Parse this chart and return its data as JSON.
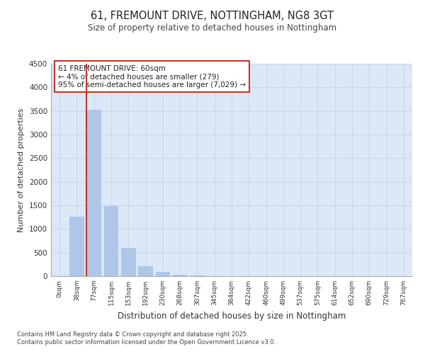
{
  "title": "61, FREMOUNT DRIVE, NOTTINGHAM, NG8 3GT",
  "subtitle": "Size of property relative to detached houses in Nottingham",
  "xlabel": "Distribution of detached houses by size in Nottingham",
  "ylabel": "Number of detached properties",
  "annotation_title": "61 FREMOUNT DRIVE: 60sqm",
  "annotation_line1": "← 4% of detached houses are smaller (279)",
  "annotation_line2": "95% of semi-detached houses are larger (7,029) →",
  "footnote1": "Contains HM Land Registry data © Crown copyright and database right 2025.",
  "footnote2": "Contains public sector information licensed under the Open Government Licence v3.0.",
  "property_size_sqm": 60,
  "categories": [
    "0sqm",
    "38sqm",
    "77sqm",
    "115sqm",
    "153sqm",
    "192sqm",
    "230sqm",
    "268sqm",
    "307sqm",
    "345sqm",
    "384sqm",
    "422sqm",
    "460sqm",
    "499sqm",
    "537sqm",
    "575sqm",
    "614sqm",
    "652sqm",
    "690sqm",
    "729sqm",
    "767sqm"
  ],
  "values": [
    0,
    1260,
    3530,
    1490,
    600,
    210,
    90,
    30,
    10,
    5,
    2,
    1,
    0,
    0,
    0,
    0,
    0,
    0,
    0,
    0,
    0
  ],
  "bar_color": "#aec6e8",
  "line_color": "#c0392b",
  "annotation_box_color": "#ffffff",
  "annotation_box_edge": "#c0392b",
  "grid_color": "#c8d4e8",
  "background_color": "#dce8f8",
  "ylim": [
    0,
    4500
  ],
  "yticks": [
    0,
    500,
    1000,
    1500,
    2000,
    2500,
    3000,
    3500,
    4000,
    4500
  ]
}
